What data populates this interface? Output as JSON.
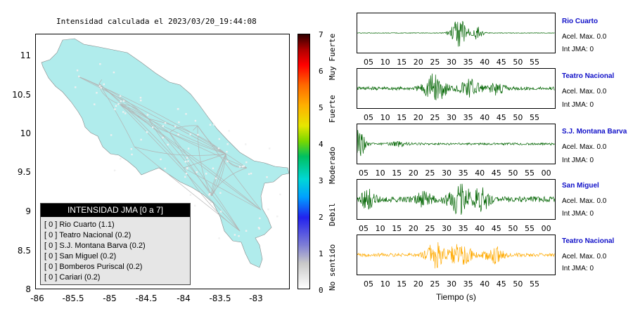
{
  "map": {
    "title": "Intensidad calculada el 2023/03/20_19:44:08",
    "y_ticks": [
      "11",
      "10.5",
      "10",
      "9.5",
      "9",
      "8.5",
      "8"
    ],
    "x_ticks": [
      "-86",
      "-85.5",
      "-85",
      "-84.5",
      "-84",
      "-83.5",
      "-83"
    ],
    "land_color": "#b0ecec",
    "road_color": "#b4b4b4"
  },
  "legend": {
    "header": "INTENSIDAD JMA [0 a 7]",
    "rows": [
      "[ 0 ] Rio Cuarto (1.1)",
      "[ 0 ] Teatro Nacional (0.2)",
      "[ 0 ] S.J. Montana Barva (0.2)",
      "[ 0 ] San Miguel (0.2)",
      "[ 0 ] Bomberos Puriscal (0.2)",
      "[ 0 ] Cariari (0.2)"
    ]
  },
  "colorbar": {
    "ticks": [
      "7",
      "6",
      "5",
      "4",
      "3",
      "2",
      "1",
      "0"
    ],
    "labels": [
      "Muy Fuerte",
      "Fuerte",
      "Moderado",
      "Debil",
      "No sentido"
    ]
  },
  "traces": [
    {
      "station": "Rio Cuarto",
      "accel": "Acel. Max. 0.0",
      "jma": "Int JMA: 0",
      "color": "#006400",
      "ticks": [
        "05",
        "10",
        "15",
        "20",
        "25",
        "30",
        "35",
        "40",
        "45",
        "50",
        "55"
      ]
    },
    {
      "station": "Teatro Nacional",
      "accel": "Acel. Max. 0.0",
      "jma": "Int JMA: 0",
      "color": "#006400",
      "ticks": [
        "05",
        "10",
        "15",
        "20",
        "25",
        "30",
        "35",
        "40",
        "45",
        "50",
        "55"
      ]
    },
    {
      "station": "S.J. Montana Barva",
      "accel": "Acel. Max. 0.0",
      "jma": "Int JMA: 0",
      "color": "#006400",
      "ticks": [
        "05",
        "10",
        "15",
        "20",
        "25",
        "30",
        "35",
        "40",
        "45",
        "50",
        "55",
        "00"
      ]
    },
    {
      "station": "San Miguel",
      "accel": "Acel. Max. 0.0",
      "jma": "Int JMA: 0",
      "color": "#006400",
      "ticks": [
        "05",
        "10",
        "15",
        "20",
        "25",
        "30",
        "35",
        "40",
        "45",
        "50",
        "55",
        "00"
      ]
    },
    {
      "station": "Teatro Nacional",
      "accel": "Acel. Max. 0.0",
      "jma": "Int JMA: 0",
      "color": "#ffaa00",
      "ticks": [
        "05",
        "10",
        "15",
        "20",
        "25",
        "30",
        "35",
        "40",
        "45",
        "50",
        "55"
      ]
    }
  ],
  "x_axis_label": "Tiempo (s)"
}
